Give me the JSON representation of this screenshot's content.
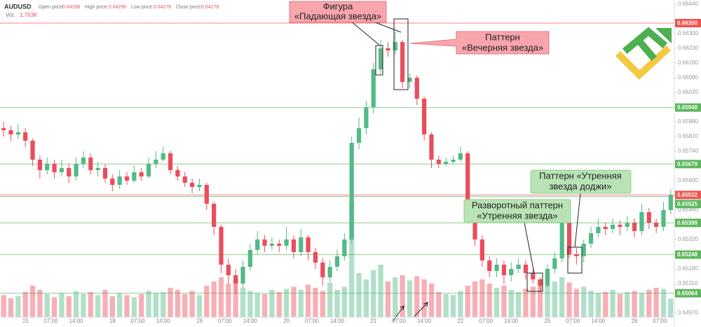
{
  "header": {
    "symbol": "AUDUSD",
    "open_label": "Open price:",
    "open": "0.64288",
    "high_label": "High price:",
    "high": "0.64290",
    "low_label": "Low price:",
    "low": "0.64276",
    "close_label": "Close price:",
    "close": "0.64278",
    "vol_label": "Vol.",
    "vol": "1.763K"
  },
  "annotations": [
    {
      "lines": [
        "Фигура",
        "«Падающая звезда»"
      ]
    },
    {
      "lines": [
        "Паттерн",
        "«Вечерняя звезда»"
      ]
    },
    {
      "lines": [
        "Разворотный паттерн",
        "«Утренняя звезда»"
      ]
    },
    {
      "lines": [
        "Паттерн «Утренняя",
        "звезда доджи»"
      ]
    }
  ],
  "chart_data": {
    "type": "candlestick",
    "up_color": "#53b987",
    "down_color": "#eb4d5c",
    "xlim": [
      -7,
      179
    ],
    "ylim": [
      0.6495,
      0.6646
    ],
    "xticks": [
      {
        "value": 0,
        "label": "15"
      },
      {
        "value": 7,
        "label": "07:00"
      },
      {
        "value": 14,
        "label": "14:00"
      },
      {
        "value": 24,
        "label": "18"
      },
      {
        "value": 31,
        "label": "07:00"
      },
      {
        "value": 38,
        "label": "14:00"
      },
      {
        "value": 48,
        "label": "19"
      },
      {
        "value": 55,
        "label": "07:00"
      },
      {
        "value": 62,
        "label": "14:00"
      },
      {
        "value": 72,
        "label": "20"
      },
      {
        "value": 79,
        "label": "07:00"
      },
      {
        "value": 86,
        "label": "14:00"
      },
      {
        "value": 96,
        "label": "21"
      },
      {
        "value": 103,
        "label": "07:00"
      },
      {
        "value": 110,
        "label": "14:00"
      },
      {
        "value": 120,
        "label": "22"
      },
      {
        "value": 127,
        "label": "07:00"
      },
      {
        "value": 134,
        "label": "14:00"
      },
      {
        "value": 144,
        "label": "25"
      },
      {
        "value": 151,
        "label": "07:00"
      },
      {
        "value": 158,
        "label": "14:00"
      },
      {
        "value": 168,
        "label": "26"
      },
      {
        "value": 175,
        "label": "07:00"
      }
    ],
    "yticks": [
      {
        "value": 0.6644,
        "label": "0.66440"
      },
      {
        "value": 0.663,
        "label": "0.66300"
      },
      {
        "value": 0.6623,
        "label": "0.66230"
      },
      {
        "value": 0.6616,
        "label": "0.66160"
      },
      {
        "value": 0.6609,
        "label": "0.66090"
      },
      {
        "value": 0.6602,
        "label": "0.66020"
      },
      {
        "value": 0.6588,
        "label": "0.65880"
      },
      {
        "value": 0.6581,
        "label": "0.65810"
      },
      {
        "value": 0.6574,
        "label": "0.65740"
      },
      {
        "value": 0.656,
        "label": "0.65600"
      },
      {
        "value": 0.6546,
        "label": "0.65460"
      },
      {
        "value": 0.6532,
        "label": "0.65320"
      },
      {
        "value": 0.6518,
        "label": "0.65180"
      },
      {
        "value": 0.6511,
        "label": "0.65110"
      },
      {
        "value": 0.6497,
        "label": "0.64970"
      }
    ],
    "levels": [
      {
        "value": 0.6635,
        "label": "0.66350",
        "color": "#ef5350"
      },
      {
        "value": 0.65948,
        "label": "0.65948",
        "color": "#5cb85c"
      },
      {
        "value": 0.65679,
        "label": "0.65679",
        "color": "#5cb85c"
      },
      {
        "value": 0.65532,
        "label": "0.65532",
        "color": "#ef5350"
      },
      {
        "value": 0.65525,
        "label": "0.65525",
        "color": "#5cb85c"
      },
      {
        "value": 0.65399,
        "label": "0.65399",
        "color": "#5cb85c"
      },
      {
        "value": 0.65248,
        "label": "0.65248",
        "color": "#5cb85c"
      },
      {
        "value": 0.65064,
        "label": "0.65064",
        "color": "#5cb85c"
      }
    ],
    "x": [
      -6,
      -4,
      -2,
      0,
      2,
      4,
      6,
      8,
      10,
      12,
      14,
      16,
      18,
      20,
      22,
      24,
      26,
      28,
      30,
      32,
      34,
      36,
      38,
      40,
      42,
      44,
      46,
      48,
      50,
      52,
      54,
      56,
      58,
      60,
      62,
      64,
      66,
      68,
      70,
      72,
      74,
      76,
      78,
      80,
      82,
      84,
      86,
      88,
      90,
      92,
      94,
      96,
      98,
      100,
      102,
      104,
      106,
      108,
      110,
      112,
      114,
      116,
      118,
      120,
      122,
      124,
      126,
      128,
      130,
      132,
      134,
      136,
      138,
      140,
      142,
      144,
      146,
      148,
      150,
      152,
      154,
      156,
      158,
      160,
      162,
      164,
      166,
      168,
      170,
      172,
      174,
      176,
      178
    ],
    "open": [
      0.6585,
      0.6584,
      0.6582,
      0.6583,
      0.6579,
      0.657,
      0.6565,
      0.6568,
      0.6564,
      0.6566,
      0.6562,
      0.6568,
      0.6571,
      0.6565,
      0.6566,
      0.6561,
      0.6558,
      0.6562,
      0.656,
      0.6564,
      0.6562,
      0.6568,
      0.657,
      0.6573,
      0.6565,
      0.6562,
      0.6559,
      0.6557,
      0.6558,
      0.6549,
      0.6538,
      0.652,
      0.6515,
      0.6511,
      0.6519,
      0.6527,
      0.6532,
      0.6529,
      0.653,
      0.6529,
      0.6532,
      0.6526,
      0.6533,
      0.6526,
      0.6521,
      0.6514,
      0.6519,
      0.6524,
      0.6532,
      0.6578,
      0.6585,
      0.6595,
      0.6613,
      0.6623,
      0.6622,
      0.6626,
      0.6607,
      0.6609,
      0.6599,
      0.6582,
      0.657,
      0.6568,
      0.6569,
      0.657,
      0.6573,
      0.6548,
      0.6532,
      0.6522,
      0.6517,
      0.652,
      0.6515,
      0.6518,
      0.652,
      0.6516,
      0.6513,
      0.651,
      0.6518,
      0.6523,
      0.654,
      0.6525,
      0.6524,
      0.653,
      0.6535,
      0.6538,
      0.6537,
      0.6539,
      0.6538,
      0.654,
      0.6536,
      0.6545,
      0.654,
      0.6538,
      0.6546
    ],
    "high": [
      0.6588,
      0.6586,
      0.6587,
      0.6585,
      0.658,
      0.6572,
      0.6571,
      0.657,
      0.657,
      0.6568,
      0.6571,
      0.6574,
      0.6573,
      0.6569,
      0.6568,
      0.6563,
      0.6565,
      0.6564,
      0.6567,
      0.6566,
      0.6571,
      0.6574,
      0.6576,
      0.6574,
      0.6567,
      0.6564,
      0.6561,
      0.6561,
      0.6559,
      0.655,
      0.6539,
      0.6523,
      0.6518,
      0.6522,
      0.653,
      0.6536,
      0.6534,
      0.6533,
      0.6532,
      0.6538,
      0.6534,
      0.6537,
      0.6534,
      0.6528,
      0.6523,
      0.6522,
      0.6527,
      0.6535,
      0.6581,
      0.659,
      0.6598,
      0.6616,
      0.6627,
      0.6626,
      0.6631,
      0.6627,
      0.6611,
      0.661,
      0.66,
      0.6583,
      0.6572,
      0.6571,
      0.6572,
      0.6576,
      0.6574,
      0.6549,
      0.6534,
      0.6524,
      0.6523,
      0.6522,
      0.6521,
      0.6523,
      0.6522,
      0.6518,
      0.6514,
      0.652,
      0.6526,
      0.6542,
      0.6541,
      0.6528,
      0.6532,
      0.6538,
      0.6542,
      0.654,
      0.6542,
      0.6541,
      0.6543,
      0.6542,
      0.6549,
      0.6547,
      0.6542,
      0.655,
      0.6556
    ],
    "low": [
      0.6581,
      0.6579,
      0.658,
      0.6576,
      0.6567,
      0.6561,
      0.6563,
      0.6561,
      0.6562,
      0.6559,
      0.656,
      0.6566,
      0.6563,
      0.6562,
      0.6559,
      0.6555,
      0.6556,
      0.6558,
      0.6559,
      0.656,
      0.6561,
      0.6566,
      0.6569,
      0.6563,
      0.656,
      0.6557,
      0.6554,
      0.6555,
      0.6546,
      0.6534,
      0.6516,
      0.6511,
      0.6506,
      0.6509,
      0.6517,
      0.6525,
      0.6526,
      0.6527,
      0.6526,
      0.6527,
      0.6523,
      0.6524,
      0.6522,
      0.6518,
      0.651,
      0.6512,
      0.6517,
      0.6522,
      0.653,
      0.6575,
      0.6582,
      0.6592,
      0.6611,
      0.6619,
      0.662,
      0.6604,
      0.6604,
      0.6596,
      0.6579,
      0.6566,
      0.6566,
      0.6567,
      0.6568,
      0.6569,
      0.6545,
      0.6529,
      0.6519,
      0.6514,
      0.6514,
      0.6511,
      0.6512,
      0.6516,
      0.6513,
      0.6511,
      0.6507,
      0.6509,
      0.6516,
      0.6521,
      0.6523,
      0.652,
      0.6521,
      0.6528,
      0.6533,
      0.6534,
      0.6535,
      0.6534,
      0.6536,
      0.6533,
      0.6534,
      0.6537,
      0.6535,
      0.6536,
      0.6544
    ],
    "close": [
      0.6584,
      0.6582,
      0.6583,
      0.6579,
      0.657,
      0.6565,
      0.6568,
      0.6564,
      0.6566,
      0.6562,
      0.6568,
      0.6571,
      0.6565,
      0.6566,
      0.6561,
      0.6558,
      0.6562,
      0.656,
      0.6564,
      0.6562,
      0.6568,
      0.657,
      0.6573,
      0.6565,
      0.6562,
      0.6559,
      0.6557,
      0.6558,
      0.6549,
      0.6538,
      0.652,
      0.6515,
      0.6511,
      0.6519,
      0.6527,
      0.6532,
      0.6529,
      0.653,
      0.6529,
      0.6532,
      0.6526,
      0.6533,
      0.6526,
      0.6521,
      0.6514,
      0.6519,
      0.6524,
      0.6532,
      0.6578,
      0.6585,
      0.6595,
      0.6613,
      0.6623,
      0.6622,
      0.6626,
      0.6607,
      0.6609,
      0.6599,
      0.6582,
      0.657,
      0.6568,
      0.6569,
      0.657,
      0.6573,
      0.6548,
      0.6532,
      0.6522,
      0.6517,
      0.652,
      0.6515,
      0.6518,
      0.652,
      0.6516,
      0.6513,
      0.651,
      0.6518,
      0.6523,
      0.654,
      0.6525,
      0.6524,
      0.653,
      0.6535,
      0.6538,
      0.6537,
      0.6539,
      0.6538,
      0.654,
      0.6536,
      0.6545,
      0.654,
      0.6538,
      0.6546,
      0.65532
    ],
    "volume": [
      2.1,
      1.8,
      2.0,
      2.4,
      3.0,
      2.6,
      2.2,
      1.9,
      2.3,
      2.0,
      2.5,
      2.2,
      2.4,
      2.1,
      2.6,
      2.0,
      2.3,
      2.1,
      1.9,
      2.2,
      2.5,
      2.3,
      2.4,
      2.8,
      2.6,
      2.2,
      2.5,
      2.1,
      3.0,
      3.4,
      3.8,
      3.2,
      3.6,
      2.8,
      2.5,
      2.3,
      2.2,
      2.6,
      2.4,
      2.7,
      2.9,
      2.6,
      3.1,
      2.8,
      2.5,
      3.3,
      2.6,
      2.9,
      11.0,
      4.2,
      3.6,
      4.5,
      5.0,
      3.4,
      3.8,
      4.0,
      3.5,
      3.9,
      3.6,
      3.2,
      2.4,
      2.2,
      2.1,
      2.5,
      3.0,
      3.4,
      3.6,
      3.2,
      2.8,
      3.0,
      2.6,
      2.4,
      2.7,
      2.9,
      3.6,
      3.1,
      3.4,
      3.8,
      3.3,
      2.7,
      2.9,
      2.5,
      2.3,
      2.4,
      2.6,
      2.2,
      2.4,
      2.5,
      2.3,
      2.6,
      2.8,
      2.7,
      1.763
    ]
  }
}
